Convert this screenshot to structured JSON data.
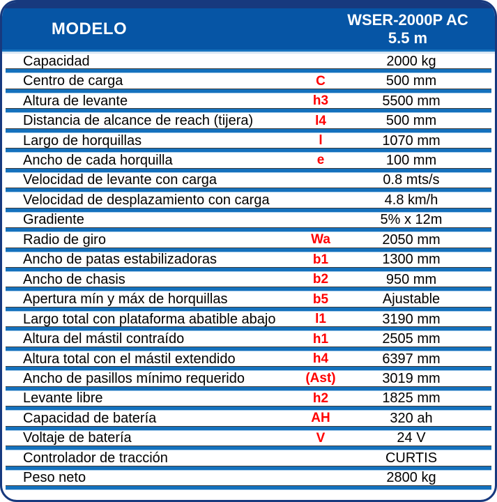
{
  "header": {
    "model_label": "MODELO",
    "model_name": "WSER-2000P AC",
    "model_variant": "5.5 m"
  },
  "colors": {
    "navy_border": "#17397E",
    "header_blue": "#0655A5",
    "separator_blue": "#1471BD",
    "separator_light": "#AACCE9",
    "separator_dark": "#3B3B3B",
    "symbol_red": "#FF0000",
    "text_black": "#000000"
  },
  "rows": [
    {
      "label": "Capacidad",
      "symbol": "",
      "value": "2000 kg"
    },
    {
      "label": "Centro de carga",
      "symbol": "C",
      "value": "500 mm"
    },
    {
      "label": "Altura de levante",
      "symbol": "h3",
      "value": "5500 mm"
    },
    {
      "label": "Distancia de alcance de reach (tijera)",
      "symbol": "l4",
      "value": "500 mm"
    },
    {
      "label": "Largo de horquillas",
      "symbol": "l",
      "value": "1070 mm"
    },
    {
      "label": "Ancho de cada horquilla",
      "symbol": "e",
      "value": "100 mm"
    },
    {
      "label": "Velocidad de levante con carga",
      "symbol": "",
      "value": "0.8 mts/s"
    },
    {
      "label": "Velocidad de desplazamiento con carga",
      "symbol": "",
      "value": "4.8 km/h"
    },
    {
      "label": "Gradiente",
      "symbol": "",
      "value": "5% x 12m"
    },
    {
      "label": "Radio de giro",
      "symbol": "Wa",
      "value": "2050 mm"
    },
    {
      "label": "Ancho de patas estabilizadoras",
      "symbol": "b1",
      "value": "1300 mm"
    },
    {
      "label": "Ancho de chasis",
      "symbol": "b2",
      "value": "950 mm"
    },
    {
      "label": "Apertura mín y máx de horquillas",
      "symbol": "b5",
      "value": "Ajustable"
    },
    {
      "label": "Largo total con plataforma abatible abajo",
      "symbol": "l1",
      "value": "3190 mm"
    },
    {
      "label": "Altura del mástil contraído",
      "symbol": "h1",
      "value": "2505 mm"
    },
    {
      "label": "Altura total con el mástil extendido",
      "symbol": "h4",
      "value": "6397 mm"
    },
    {
      "label": "Ancho de pasillos mínimo requerido",
      "symbol": "(Ast)",
      "value": "3019 mm"
    },
    {
      "label": "Levante libre",
      "symbol": "h2",
      "value": "1825 mm"
    },
    {
      "label": "Capacidad de batería",
      "symbol": "AH",
      "value": "320 ah"
    },
    {
      "label": "Voltaje de batería",
      "symbol": "V",
      "value": "24 V"
    },
    {
      "label": "Controlador de tracción",
      "symbol": "",
      "value": "CURTIS"
    },
    {
      "label": "Peso neto",
      "symbol": "",
      "value": "2800 kg"
    }
  ]
}
